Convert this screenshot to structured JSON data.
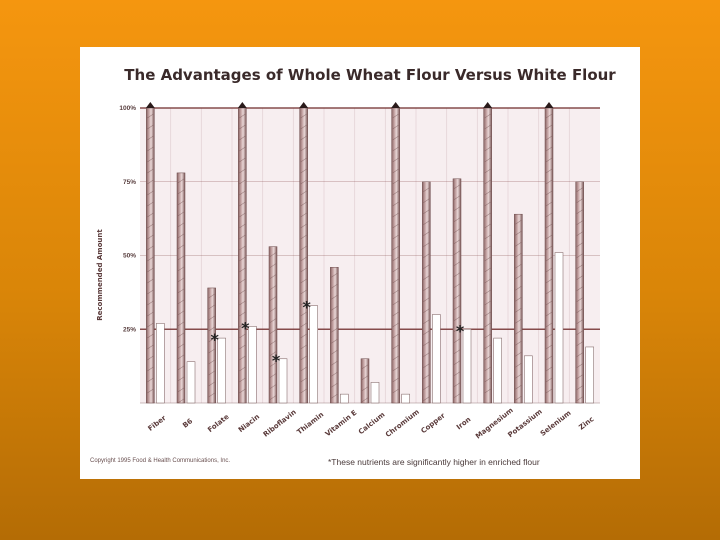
{
  "chart_data": {
    "type": "bar",
    "title": "The Advantages of Whole Wheat Flour Versus White Flour",
    "ylabel": "Recommended Amount",
    "xlabel": "",
    "ylim": [
      0,
      100
    ],
    "yticks": [
      "25%",
      "50%",
      "75%",
      "100%"
    ],
    "categories": [
      "Fiber",
      "B6",
      "Folate",
      "Niacin",
      "Riboflavin",
      "Thiamin",
      "Vitamin E",
      "Calcium",
      "Chromium",
      "Copper",
      "Iron",
      "Magnesium",
      "Potassium",
      "Selenium",
      "Zinc"
    ],
    "series": [
      {
        "values": [
          100,
          78,
          39,
          100,
          53,
          100,
          46,
          15,
          100,
          75,
          76,
          100,
          64,
          100,
          75
        ]
      },
      {
        "values": [
          27,
          14,
          22,
          26,
          15,
          33,
          3,
          7,
          3,
          30,
          25,
          22,
          16,
          51,
          19
        ]
      }
    ],
    "enriched": [
      "Folate",
      "Niacin",
      "Riboflavin",
      "Thiamin",
      "Iron"
    ],
    "grid": true,
    "colors": {
      "whole_wheat": "#b08a8a",
      "white": "#ffffff",
      "grid": "#7a3a3a",
      "plot_bg": "#f7eef0"
    }
  },
  "footer": {
    "copyright": "Copyright 1995 Food & Health Communications, Inc.",
    "note": "*These nutrients are significantly higher in enriched flour",
    "star": "*"
  }
}
